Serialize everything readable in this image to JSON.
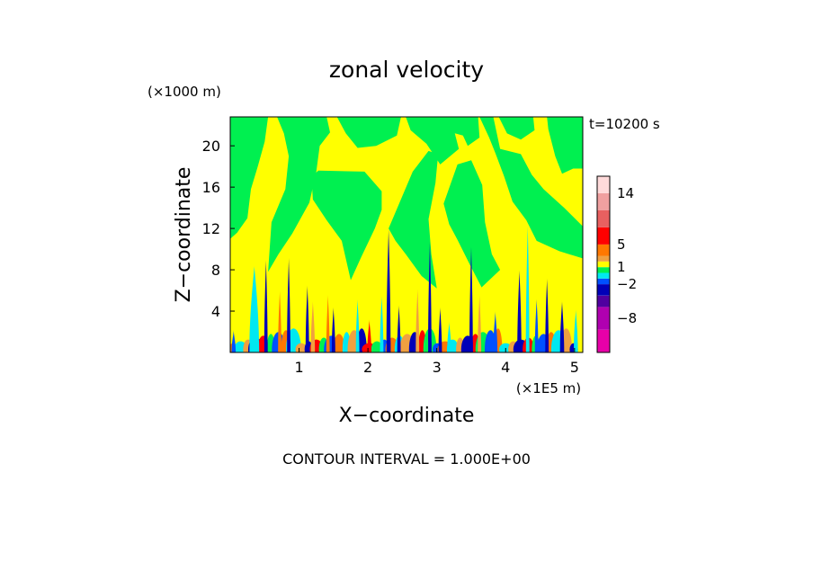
{
  "chart_data": {
    "type": "heatmap",
    "title": "zonal velocity",
    "xlabel": "X−coordinate",
    "ylabel": "Z−coordinate",
    "x_unit": "(×1E5 m)",
    "y_unit": "(×1000 m)",
    "time_label": "t=10200 s",
    "footer": "CONTOUR INTERVAL = 1.000E+00",
    "xlim": [
      0,
      5.12
    ],
    "ylim": [
      0,
      22.8
    ],
    "x_ticks": [
      1,
      2,
      3,
      4,
      5
    ],
    "y_ticks": [
      4,
      8,
      12,
      16,
      20
    ],
    "colorbar": {
      "range": [
        -14,
        17
      ],
      "tick_values": [
        14,
        5,
        1,
        -2,
        -8
      ],
      "tick_labels": [
        "14",
        "5",
        "1",
        "−2",
        "−8"
      ],
      "levels": [
        {
          "lo": -14,
          "hi": -10,
          "color": "#e800a8"
        },
        {
          "lo": -10,
          "hi": -6,
          "color": "#b000b0"
        },
        {
          "lo": -6,
          "hi": -4,
          "color": "#5000a0"
        },
        {
          "lo": -4,
          "hi": -2,
          "color": "#0000b8"
        },
        {
          "lo": -2,
          "hi": -1,
          "color": "#0050ff"
        },
        {
          "lo": -1,
          "hi": 0,
          "color": "#00e8f0"
        },
        {
          "lo": 0,
          "hi": 1,
          "color": "#00f050"
        },
        {
          "lo": 1,
          "hi": 2,
          "color": "#ffff00"
        },
        {
          "lo": 2,
          "hi": 3,
          "color": "#f0a040"
        },
        {
          "lo": 3,
          "hi": 5,
          "color": "#ff7800"
        },
        {
          "lo": 5,
          "hi": 8,
          "color": "#ff0000"
        },
        {
          "lo": 8,
          "hi": 11,
          "color": "#e86060"
        },
        {
          "lo": 11,
          "hi": 14,
          "color": "#f0a0a0"
        },
        {
          "lo": 14,
          "hi": 17,
          "color": "#ffdada"
        }
      ]
    },
    "green_regions": [
      [
        [
          0,
          22.8
        ],
        [
          0.55,
          22.8
        ],
        [
          0.5,
          20.4
        ],
        [
          0.4,
          18.0
        ],
        [
          0.3,
          15.8
        ],
        [
          0.25,
          13.0
        ],
        [
          0.1,
          11.6
        ],
        [
          0,
          11.0
        ]
      ],
      [
        [
          0.68,
          22.8
        ],
        [
          1.4,
          22.8
        ],
        [
          1.45,
          21.3
        ],
        [
          1.3,
          20.0
        ],
        [
          1.25,
          17.5
        ],
        [
          1.15,
          14.5
        ],
        [
          0.9,
          11.5
        ],
        [
          0.7,
          9.5
        ],
        [
          0.55,
          7.8
        ],
        [
          0.6,
          12.6
        ],
        [
          0.8,
          15.8
        ],
        [
          0.85,
          19.0
        ],
        [
          0.78,
          21.2
        ]
      ],
      [
        [
          1.18,
          17.0
        ],
        [
          1.28,
          17.6
        ],
        [
          1.95,
          17.5
        ],
        [
          2.2,
          15.6
        ],
        [
          2.2,
          13.8
        ],
        [
          2.1,
          12.0
        ],
        [
          1.9,
          9.2
        ],
        [
          1.75,
          7.0
        ],
        [
          1.62,
          10.8
        ],
        [
          1.4,
          12.8
        ],
        [
          1.2,
          14.8
        ]
      ],
      [
        [
          1.55,
          22.8
        ],
        [
          2.48,
          22.8
        ],
        [
          2.42,
          21.0
        ],
        [
          2.12,
          20.0
        ],
        [
          1.85,
          19.8
        ],
        [
          1.68,
          21.2
        ]
      ],
      [
        [
          2.3,
          12.0
        ],
        [
          2.65,
          17.5
        ],
        [
          2.88,
          19.5
        ],
        [
          3.02,
          19.2
        ],
        [
          2.98,
          16.4
        ],
        [
          2.88,
          12.9
        ],
        [
          2.92,
          9.5
        ],
        [
          3.0,
          6.2
        ],
        [
          2.78,
          7.4
        ],
        [
          2.55,
          9.5
        ],
        [
          2.4,
          10.8
        ]
      ],
      [
        [
          2.55,
          22.8
        ],
        [
          3.2,
          22.8
        ],
        [
          3.32,
          19.7
        ],
        [
          3.05,
          18.2
        ],
        [
          2.85,
          20.2
        ],
        [
          2.62,
          21.5
        ]
      ],
      [
        [
          3.05,
          22.8
        ],
        [
          3.6,
          22.8
        ],
        [
          3.62,
          20.8
        ],
        [
          3.45,
          20.0
        ],
        [
          3.38,
          21.0
        ],
        [
          3.15,
          21.4
        ]
      ],
      [
        [
          3.1,
          14.4
        ],
        [
          3.3,
          18.2
        ],
        [
          3.5,
          18.6
        ],
        [
          3.66,
          16.2
        ],
        [
          3.7,
          12.6
        ],
        [
          3.8,
          9.5
        ],
        [
          3.92,
          8.0
        ],
        [
          3.65,
          6.3
        ],
        [
          3.48,
          8.5
        ],
        [
          3.3,
          10.9
        ],
        [
          3.18,
          12.4
        ]
      ],
      [
        [
          3.62,
          22.8
        ],
        [
          3.82,
          22.8
        ],
        [
          3.92,
          19.7
        ],
        [
          4.22,
          19.2
        ],
        [
          4.38,
          17.2
        ],
        [
          4.55,
          15.8
        ],
        [
          4.85,
          14.0
        ],
        [
          5.12,
          12.2
        ],
        [
          5.12,
          9.1
        ],
        [
          4.78,
          9.8
        ],
        [
          4.45,
          10.8
        ],
        [
          4.3,
          12.8
        ],
        [
          4.1,
          14.6
        ],
        [
          3.98,
          17.0
        ],
        [
          3.85,
          19.3
        ],
        [
          3.76,
          20.8
        ]
      ],
      [
        [
          3.9,
          22.8
        ],
        [
          4.4,
          22.8
        ],
        [
          4.42,
          21.5
        ],
        [
          4.22,
          20.6
        ],
        [
          4.02,
          21.2
        ]
      ],
      [
        [
          4.6,
          22.8
        ],
        [
          5.12,
          22.8
        ],
        [
          5.12,
          17.8
        ],
        [
          4.98,
          17.8
        ],
        [
          4.82,
          17.3
        ],
        [
          4.72,
          19.0
        ],
        [
          4.62,
          21.6
        ]
      ]
    ],
    "low_zone_features": [
      {
        "x": 0.05,
        "z_top": 2.2,
        "w": 0.06,
        "color": "#0050ff"
      },
      {
        "x": 0.35,
        "z_top": 8.4,
        "w": 0.14,
        "color": "#00e8f0"
      },
      {
        "x": 0.52,
        "z_top": 9.0,
        "w": 0.05,
        "color": "#0000b8"
      },
      {
        "x": 0.72,
        "z_top": 6.0,
        "w": 0.05,
        "color": "#ff7800"
      },
      {
        "x": 0.85,
        "z_top": 9.2,
        "w": 0.05,
        "color": "#0000b8"
      },
      {
        "x": 1.12,
        "z_top": 6.5,
        "w": 0.05,
        "color": "#0000b8"
      },
      {
        "x": 1.2,
        "z_top": 5.0,
        "w": 0.06,
        "color": "#f0a040"
      },
      {
        "x": 1.42,
        "z_top": 5.6,
        "w": 0.05,
        "color": "#ff7800"
      },
      {
        "x": 1.5,
        "z_top": 4.4,
        "w": 0.05,
        "color": "#0000b8"
      },
      {
        "x": 1.85,
        "z_top": 5.2,
        "w": 0.05,
        "color": "#00e8f0"
      },
      {
        "x": 2.02,
        "z_top": 3.2,
        "w": 0.06,
        "color": "#ff0000"
      },
      {
        "x": 2.2,
        "z_top": 5.5,
        "w": 0.05,
        "color": "#00e8f0"
      },
      {
        "x": 2.3,
        "z_top": 12.0,
        "w": 0.06,
        "color": "#0000b8"
      },
      {
        "x": 2.45,
        "z_top": 4.6,
        "w": 0.05,
        "color": "#0000b8"
      },
      {
        "x": 2.72,
        "z_top": 6.2,
        "w": 0.05,
        "color": "#f0a040"
      },
      {
        "x": 2.9,
        "z_top": 10.8,
        "w": 0.05,
        "color": "#0000b8"
      },
      {
        "x": 3.05,
        "z_top": 4.4,
        "w": 0.05,
        "color": "#0000b8"
      },
      {
        "x": 3.18,
        "z_top": 3.0,
        "w": 0.06,
        "color": "#00e8f0"
      },
      {
        "x": 3.5,
        "z_top": 10.3,
        "w": 0.05,
        "color": "#0000b8"
      },
      {
        "x": 3.62,
        "z_top": 5.6,
        "w": 0.05,
        "color": "#f0a040"
      },
      {
        "x": 3.85,
        "z_top": 4.0,
        "w": 0.06,
        "color": "#0050ff"
      },
      {
        "x": 4.2,
        "z_top": 8.0,
        "w": 0.06,
        "color": "#0000b8"
      },
      {
        "x": 4.32,
        "z_top": 12.3,
        "w": 0.05,
        "color": "#00e8f0"
      },
      {
        "x": 4.45,
        "z_top": 5.2,
        "w": 0.05,
        "color": "#0050ff"
      },
      {
        "x": 4.6,
        "z_top": 7.2,
        "w": 0.05,
        "color": "#0000b8"
      },
      {
        "x": 4.82,
        "z_top": 5.0,
        "w": 0.06,
        "color": "#0000b8"
      },
      {
        "x": 5.02,
        "z_top": 4.2,
        "w": 0.06,
        "color": "#00e8f0"
      }
    ]
  }
}
